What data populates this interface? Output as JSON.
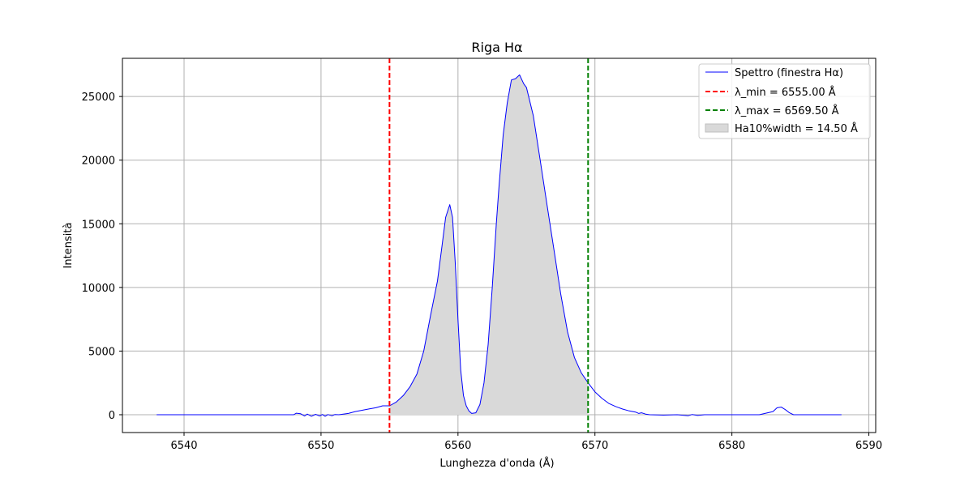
{
  "chart_data": {
    "type": "line",
    "title": "Riga Hα",
    "xlabel": "Lunghezza d'onda (Å)",
    "ylabel": "Intensità",
    "xlim": [
      6535.5,
      6590.5
    ],
    "ylim": [
      -1400,
      28000
    ],
    "xticks": [
      6540,
      6550,
      6560,
      6570,
      6580,
      6590
    ],
    "yticks": [
      0,
      5000,
      10000,
      15000,
      20000,
      25000
    ],
    "grid": true,
    "legend_position": "top-right",
    "colors": {
      "spectrum": "#0000ff",
      "lambda_min": "#ff0000",
      "lambda_max": "#008000",
      "fill": "#d9d9d9",
      "grid": "#b0b0b0"
    },
    "legend": [
      {
        "label": "Spettro (finestra Hα)",
        "kind": "line"
      },
      {
        "label": "λ_min = 6555.00 Å",
        "kind": "dash-red"
      },
      {
        "label": "λ_max = 6569.50 Å",
        "kind": "dash-green"
      },
      {
        "label": "Ha10%width = 14.50 Å",
        "kind": "patch"
      }
    ],
    "lambda_min": 6555.0,
    "lambda_max": 6569.5,
    "series": [
      {
        "x": [
          6538.0,
          6545.0,
          6548.0,
          6548.2,
          6548.5,
          6548.8,
          6549.0,
          6549.3,
          6549.6,
          6549.9,
          6550.1,
          6550.3,
          6550.5,
          6550.8,
          6551.0,
          6551.3,
          6552.0,
          6552.5,
          6553.0,
          6553.5,
          6554.0,
          6554.5,
          6555.0,
          6555.5,
          6556.0,
          6556.5,
          6557.0,
          6557.5,
          6558.0,
          6558.5,
          6558.8,
          6559.1,
          6559.4,
          6559.6,
          6559.8,
          6560.0,
          6560.2,
          6560.4,
          6560.6,
          6560.8,
          6561.0,
          6561.3,
          6561.6,
          6561.9,
          6562.2,
          6562.5,
          6562.8,
          6563.0,
          6563.3,
          6563.6,
          6563.9,
          6564.2,
          6564.5,
          6564.8,
          6565.0,
          6565.5,
          6566.0,
          6566.5,
          6567.0,
          6567.5,
          6568.0,
          6568.5,
          6569.0,
          6569.5,
          6570.0,
          6570.5,
          6571.0,
          6571.5,
          6572.0,
          6572.5,
          6573.0,
          6573.2,
          6573.4,
          6573.7,
          6574.0,
          6575.0,
          6576.0,
          6576.5,
          6576.8,
          6577.1,
          6577.5,
          6578.0,
          6580.0,
          6582.0,
          6583.0,
          6583.3,
          6583.6,
          6583.9,
          6584.2,
          6584.5,
          6585.0,
          6588.0
        ],
        "y": [
          0,
          0,
          0,
          120,
          80,
          -100,
          50,
          -120,
          30,
          -100,
          20,
          -120,
          10,
          -80,
          10,
          0,
          100,
          250,
          350,
          450,
          550,
          700,
          700,
          1000,
          1500,
          2200,
          3200,
          5000,
          7800,
          10500,
          13000,
          15500,
          16500,
          15500,
          12000,
          7500,
          3500,
          1500,
          700,
          300,
          100,
          150,
          800,
          2500,
          5500,
          10000,
          15000,
          18000,
          22000,
          24500,
          26300,
          26400,
          26700,
          26000,
          25700,
          23500,
          20000,
          16500,
          13000,
          9500,
          6500,
          4500,
          3300,
          2500,
          1800,
          1300,
          900,
          650,
          450,
          300,
          200,
          100,
          150,
          50,
          0,
          -30,
          0,
          -50,
          -80,
          20,
          -60,
          0,
          0,
          0,
          250,
          550,
          600,
          400,
          150,
          0,
          0,
          0
        ]
      }
    ]
  }
}
